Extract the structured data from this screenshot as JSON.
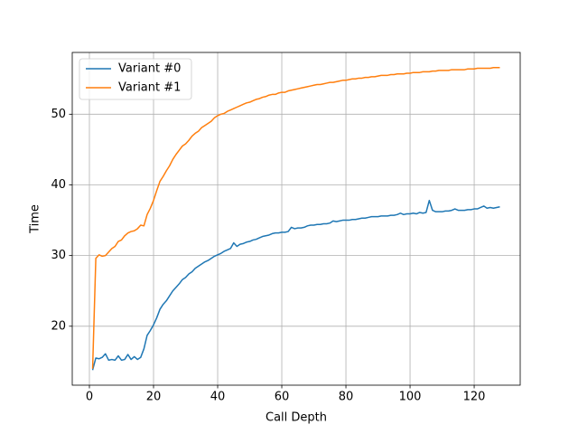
{
  "chart_data": {
    "type": "line",
    "xlabel": "Call Depth",
    "ylabel": "Time",
    "x": [
      1,
      2,
      3,
      4,
      5,
      6,
      7,
      8,
      9,
      10,
      11,
      12,
      13,
      14,
      15,
      16,
      17,
      18,
      19,
      20,
      21,
      22,
      23,
      24,
      25,
      26,
      27,
      28,
      29,
      30,
      31,
      32,
      33,
      34,
      35,
      36,
      37,
      38,
      39,
      40,
      41,
      42,
      43,
      44,
      45,
      46,
      47,
      48,
      49,
      50,
      51,
      52,
      53,
      54,
      55,
      56,
      57,
      58,
      59,
      60,
      61,
      62,
      63,
      64,
      65,
      66,
      67,
      68,
      69,
      70,
      71,
      72,
      73,
      74,
      75,
      76,
      77,
      78,
      79,
      80,
      81,
      82,
      83,
      84,
      85,
      86,
      87,
      88,
      89,
      90,
      91,
      92,
      93,
      94,
      95,
      96,
      97,
      98,
      99,
      100,
      101,
      102,
      103,
      104,
      105,
      106,
      107,
      108,
      109,
      110,
      111,
      112,
      113,
      114,
      115,
      116,
      117,
      118,
      119,
      120,
      121,
      122,
      123,
      124,
      125,
      126,
      127,
      128
    ],
    "series": [
      {
        "name": "Variant #0",
        "color": "#1f77b4",
        "values": [
          13.8,
          15.5,
          15.4,
          15.6,
          16.1,
          15.2,
          15.3,
          15.2,
          15.8,
          15.2,
          15.3,
          16.0,
          15.3,
          15.7,
          15.3,
          15.6,
          16.8,
          18.7,
          19.4,
          20.2,
          21.2,
          22.4,
          23.1,
          23.6,
          24.3,
          25.0,
          25.5,
          26.0,
          26.6,
          26.9,
          27.4,
          27.7,
          28.2,
          28.5,
          28.8,
          29.1,
          29.3,
          29.6,
          29.9,
          30.1,
          30.3,
          30.6,
          30.8,
          31.0,
          31.8,
          31.3,
          31.6,
          31.7,
          31.9,
          32.0,
          32.2,
          32.3,
          32.5,
          32.7,
          32.8,
          32.9,
          33.1,
          33.2,
          33.2,
          33.3,
          33.3,
          33.4,
          34.0,
          33.8,
          33.9,
          33.9,
          34.0,
          34.2,
          34.3,
          34.3,
          34.4,
          34.4,
          34.5,
          34.5,
          34.6,
          34.9,
          34.8,
          34.9,
          35.0,
          35.0,
          35.0,
          35.1,
          35.1,
          35.2,
          35.3,
          35.3,
          35.4,
          35.5,
          35.5,
          35.5,
          35.6,
          35.6,
          35.6,
          35.7,
          35.7,
          35.8,
          36.0,
          35.8,
          35.9,
          35.9,
          36.0,
          35.9,
          36.1,
          36.0,
          36.1,
          37.8,
          36.4,
          36.2,
          36.2,
          36.2,
          36.3,
          36.3,
          36.4,
          36.6,
          36.4,
          36.4,
          36.4,
          36.5,
          36.5,
          36.6,
          36.6,
          36.8,
          37.0,
          36.7,
          36.8,
          36.7,
          36.8,
          36.9
        ]
      },
      {
        "name": "Variant #1",
        "color": "#ff7f0e",
        "values": [
          14.0,
          29.6,
          30.1,
          29.9,
          30.0,
          30.5,
          31.0,
          31.3,
          32.0,
          32.2,
          32.8,
          33.2,
          33.4,
          33.5,
          33.8,
          34.3,
          34.2,
          35.8,
          36.7,
          37.8,
          39.2,
          40.5,
          41.2,
          42.0,
          42.7,
          43.6,
          44.3,
          44.9,
          45.5,
          45.8,
          46.3,
          46.9,
          47.3,
          47.6,
          48.1,
          48.4,
          48.7,
          49.0,
          49.5,
          49.8,
          50.0,
          50.1,
          50.4,
          50.6,
          50.8,
          51.0,
          51.2,
          51.4,
          51.6,
          51.7,
          51.9,
          52.1,
          52.2,
          52.4,
          52.5,
          52.7,
          52.8,
          52.8,
          53.0,
          53.1,
          53.1,
          53.3,
          53.4,
          53.5,
          53.6,
          53.7,
          53.8,
          53.9,
          54.0,
          54.1,
          54.2,
          54.2,
          54.3,
          54.4,
          54.5,
          54.5,
          54.6,
          54.7,
          54.8,
          54.8,
          54.9,
          55.0,
          55.0,
          55.1,
          55.1,
          55.2,
          55.2,
          55.3,
          55.3,
          55.4,
          55.5,
          55.5,
          55.5,
          55.6,
          55.6,
          55.7,
          55.7,
          55.7,
          55.8,
          55.8,
          55.9,
          55.9,
          55.9,
          56.0,
          56.0,
          56.0,
          56.1,
          56.1,
          56.2,
          56.2,
          56.2,
          56.2,
          56.3,
          56.3,
          56.3,
          56.3,
          56.3,
          56.4,
          56.4,
          56.4,
          56.5,
          56.5,
          56.5,
          56.5,
          56.5,
          56.6,
          56.6,
          56.6
        ]
      }
    ],
    "xlim": [
      -5.35,
      134.35
    ],
    "ylim": [
      11.66,
      58.74
    ],
    "xticks": [
      0,
      20,
      40,
      60,
      80,
      100,
      120
    ],
    "yticks": [
      20,
      30,
      40,
      50
    ],
    "grid": true,
    "legend": "upper left"
  }
}
